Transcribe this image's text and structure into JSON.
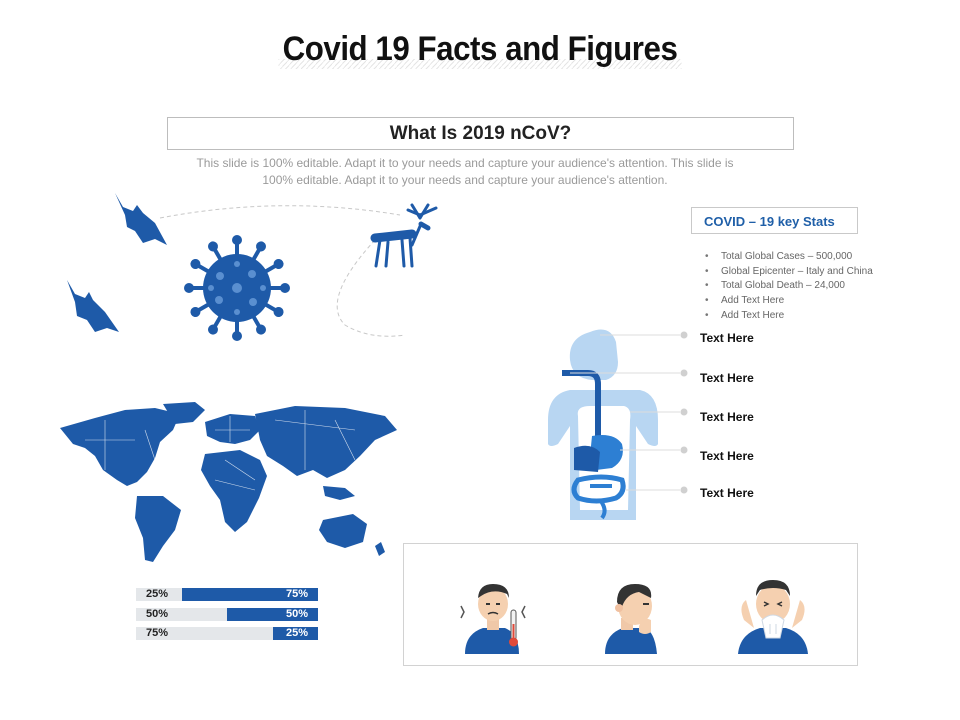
{
  "title": "Covid 19 Facts and Figures",
  "subtitle_box": "What Is 2019 nCoV?",
  "description": "This slide is 100% editable. Adapt it to your needs and capture your audience's attention. This slide is 100% editable. Adapt it to your needs and capture your audience's attention.",
  "stats": {
    "heading": "COVID – 19 key Stats",
    "items": [
      "Total Global Cases – 500,000",
      "Global Epicenter – Italy and China",
      "Total Global Death – 24,000",
      "Add Text Here",
      "Add Text Here"
    ]
  },
  "body_labels": [
    "Text Here",
    "Text Here",
    "Text Here",
    "Text Here",
    "Text Here"
  ],
  "percent_bars": [
    {
      "left_label": "25%",
      "right_label": "75%",
      "value": 0.75
    },
    {
      "left_label": "50%",
      "right_label": "50%",
      "value": 0.5
    },
    {
      "left_label": "75%",
      "right_label": "25%",
      "value": 0.25
    }
  ],
  "colors": {
    "primary_blue": "#1e5aa8",
    "light_blue": "#b8d6f2",
    "mid_blue": "#2d7fd3",
    "track_gray": "#e4e7ea"
  },
  "icons": [
    "bat-icon",
    "bat-icon",
    "virus-icon",
    "deer-icon",
    "world-map",
    "human-body-icon",
    "fever-person-icon",
    "coughing-person-icon",
    "sneezing-person-icon"
  ]
}
